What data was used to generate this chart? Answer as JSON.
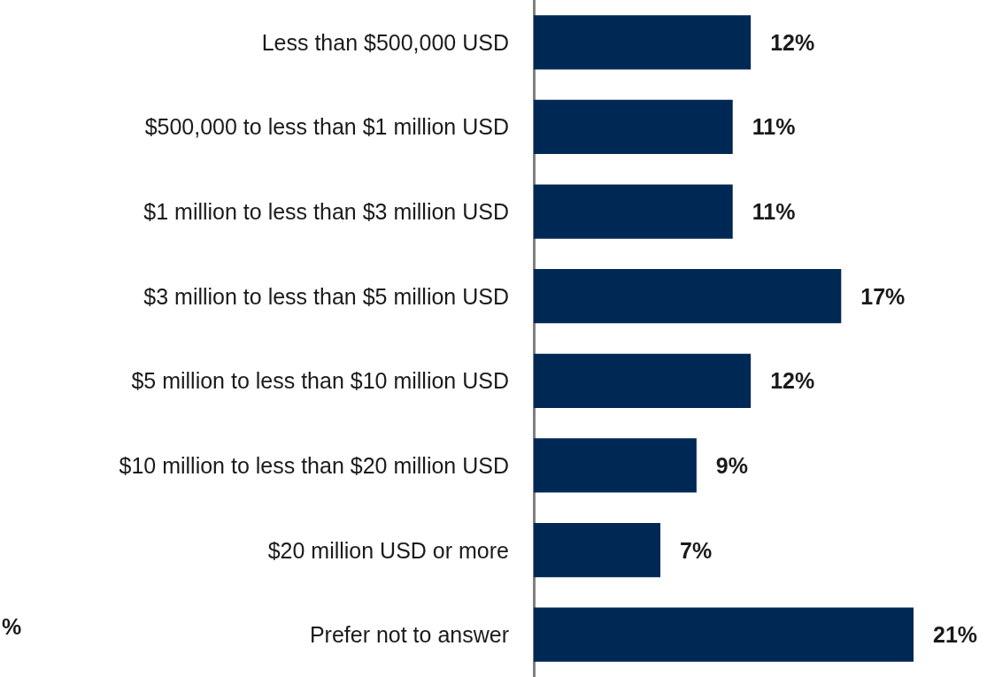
{
  "chart_data": {
    "type": "bar",
    "orientation": "horizontal",
    "categories": [
      "Less than $500,000 USD",
      "$500,000 to less than $1 million USD",
      "$1 million to less than $3 million USD",
      "$3 million to less than $5 million USD",
      "$5 million to less than $10 million USD",
      "$10 million to less than $20 million USD",
      "$20 million USD or more",
      "Prefer not to answer"
    ],
    "values": [
      12,
      11,
      11,
      17,
      12,
      9,
      7,
      21
    ],
    "value_labels": [
      "12%",
      "11%",
      "11%",
      "17%",
      "12%",
      "9%",
      "7%",
      "21%"
    ],
    "color": "#002855",
    "grid": false,
    "annotations": [
      "%"
    ]
  }
}
